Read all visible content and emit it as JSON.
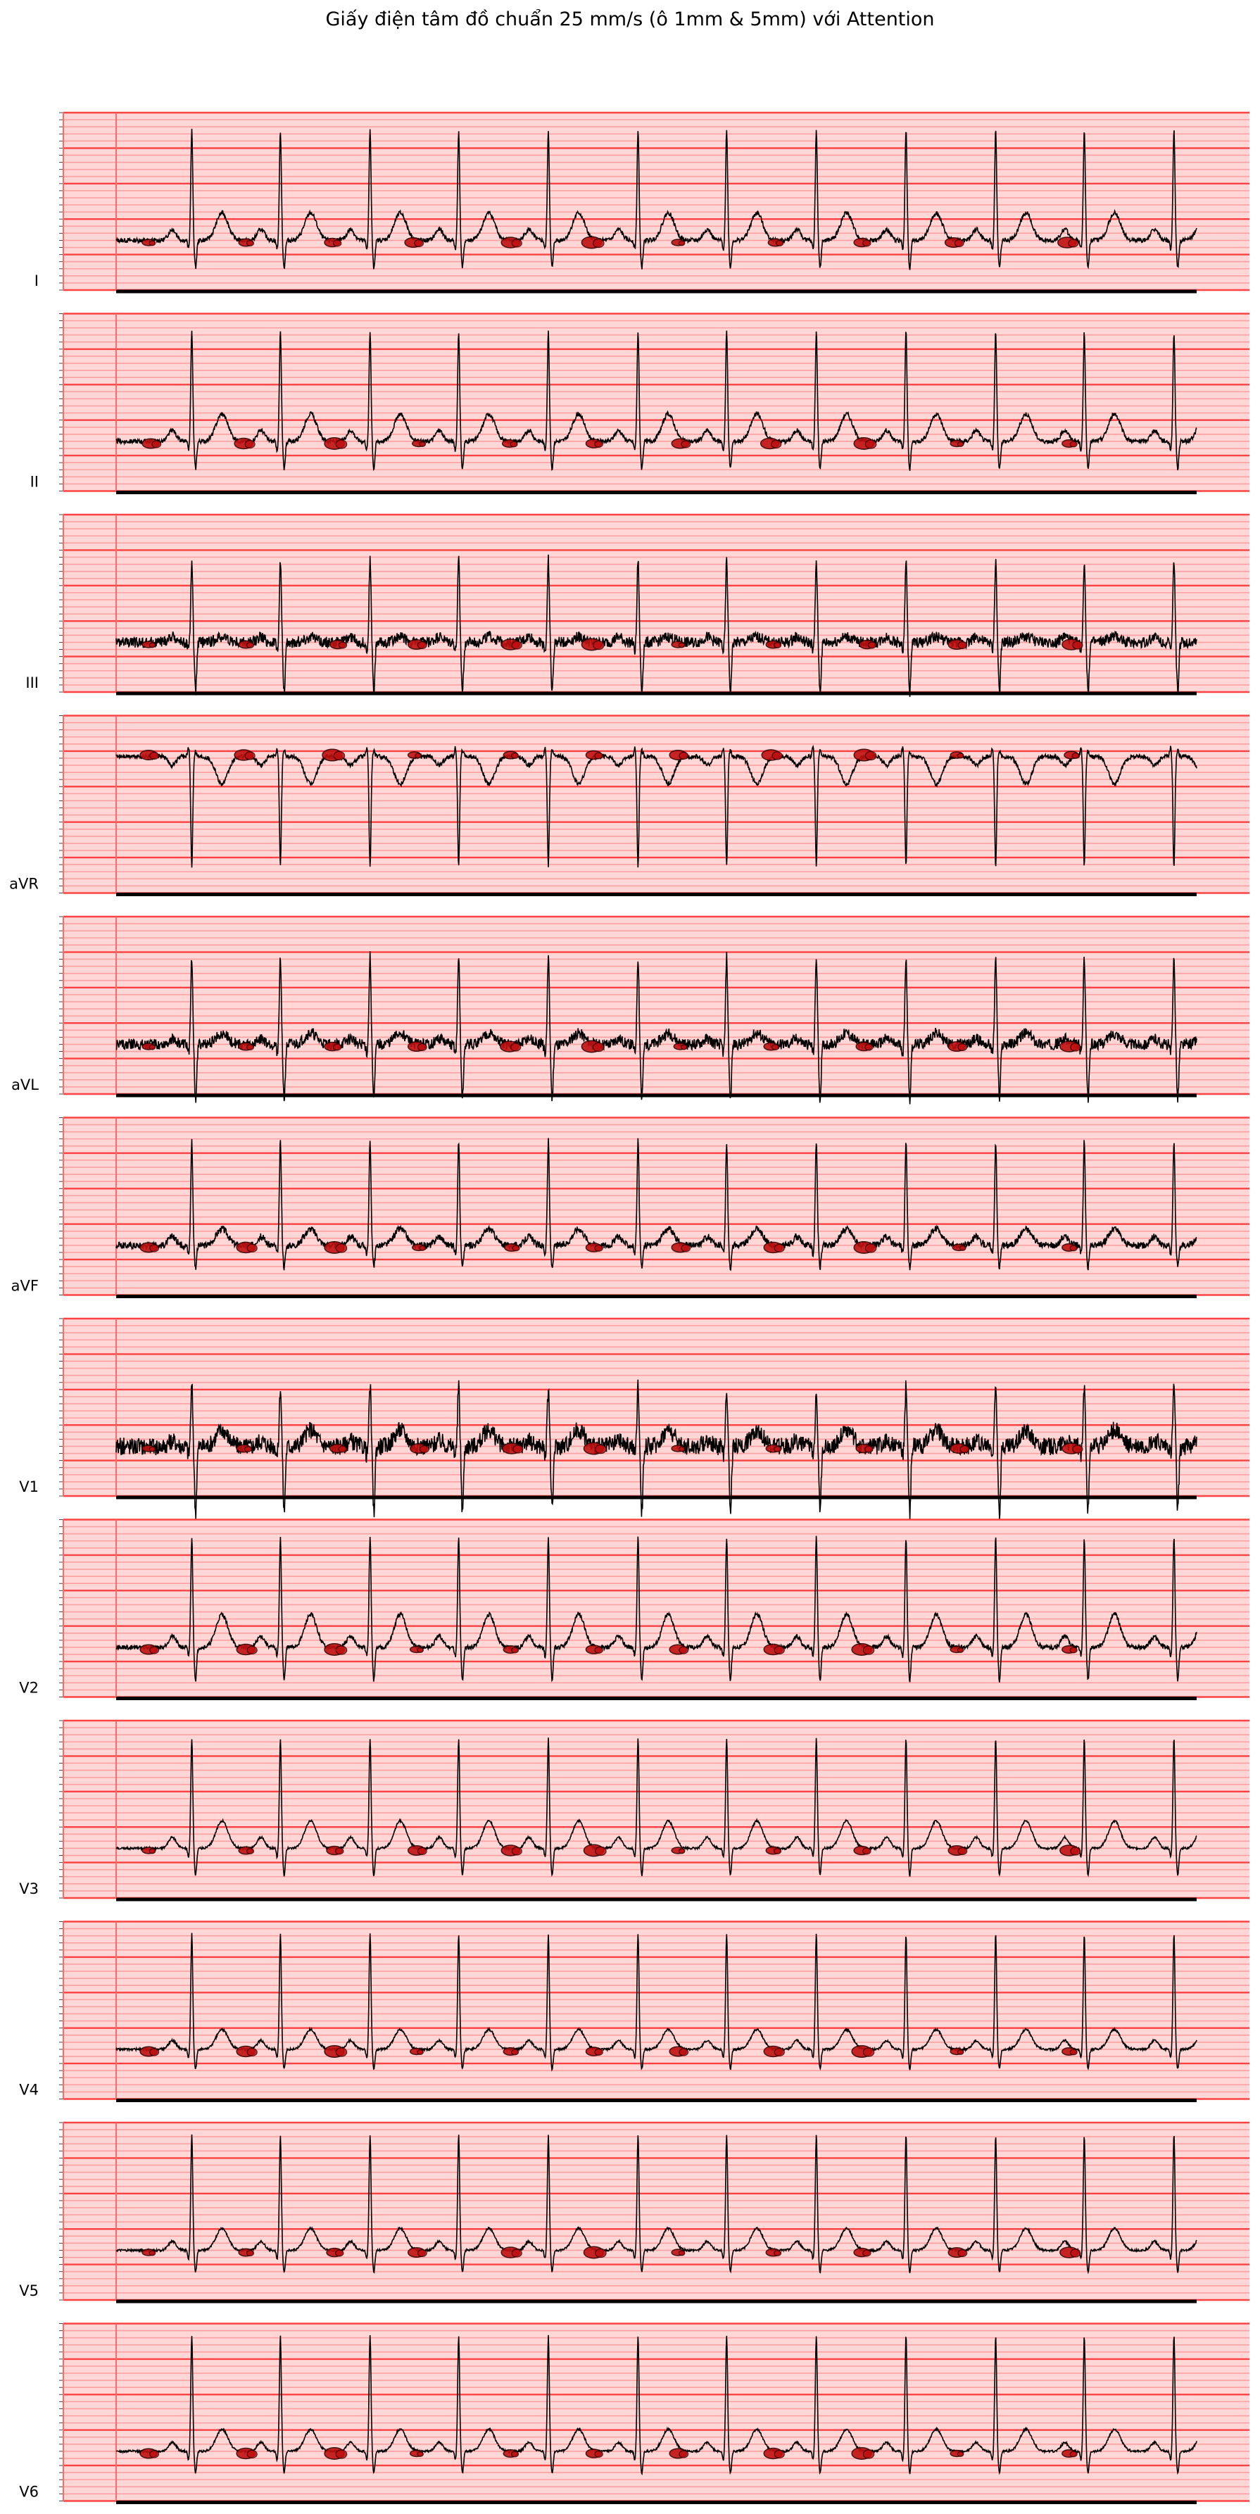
{
  "chart_data": {
    "type": "line",
    "title": "Giấy điện tâm đồ chuẩn 25 mm/s (ô 1mm & 5mm) với Attention",
    "xlabel": "",
    "ylabel": "",
    "grid": true,
    "colors": {
      "paper": "#ffd7d7",
      "grid_minor": "#ff9a9a",
      "grid_major": "#ff3030",
      "trace": "#000000",
      "attention": "#c01010",
      "attention_edge": "#300000",
      "baseline_bar": "#000000"
    },
    "beat_times": [
      0.7,
      1.52,
      2.35,
      3.17,
      4.0,
      4.83,
      5.65,
      6.48,
      7.31,
      8.14,
      8.96,
      9.79
    ],
    "leads": [
      {
        "name": "I",
        "r": 1.0,
        "s": 0.25,
        "t": 0.25,
        "p": 0.1,
        "noise": 0.02,
        "attention_times": [
          0.3,
          1.2,
          2.0,
          2.75,
          3.65,
          4.4,
          5.2,
          6.1,
          6.9,
          7.75,
          8.8
        ]
      },
      {
        "name": "II",
        "r": 1.0,
        "s": 0.25,
        "t": 0.25,
        "p": 0.1,
        "noise": 0.02,
        "attention_times": [
          0.32,
          1.18,
          2.02,
          2.8,
          3.64,
          4.42,
          5.22,
          6.05,
          6.92,
          7.78,
          8.82
        ]
      },
      {
        "name": "III",
        "r": 0.75,
        "s": 0.45,
        "t": 0.05,
        "p": 0.05,
        "noise": 0.05,
        "attention_times": [
          0.3,
          1.2,
          2.05,
          2.78,
          3.65,
          4.4,
          5.2,
          6.08,
          6.95,
          7.78,
          8.84
        ]
      },
      {
        "name": "aVR",
        "r": -1.0,
        "s": 0.05,
        "t": -0.25,
        "p": -0.08,
        "noise": 0.02,
        "attention_times": [
          0.3,
          1.18,
          2.0,
          2.76,
          3.65,
          4.42,
          5.2,
          6.06,
          6.92,
          7.78,
          8.84
        ]
      },
      {
        "name": "aVL",
        "r": 0.8,
        "s": 0.5,
        "t": 0.1,
        "p": 0.05,
        "noise": 0.05,
        "attention_times": [
          0.3,
          1.2,
          2.0,
          2.78,
          3.64,
          4.4,
          5.22,
          6.06,
          6.92,
          7.78,
          8.82
        ]
      },
      {
        "name": "aVF",
        "r": 0.95,
        "s": 0.2,
        "t": 0.15,
        "p": 0.08,
        "noise": 0.03,
        "attention_times": [
          0.3,
          1.2,
          2.02,
          2.8,
          3.66,
          4.42,
          5.22,
          6.08,
          6.92,
          7.8,
          8.82
        ]
      },
      {
        "name": "V1",
        "r": 0.55,
        "s": 0.6,
        "t": 0.15,
        "p": 0.05,
        "noise": 0.08,
        "attention_times": [
          0.3,
          1.18,
          2.05,
          2.8,
          3.66,
          4.42,
          5.2,
          6.08,
          6.92,
          7.8,
          8.84
        ]
      },
      {
        "name": "V2",
        "r": 1.0,
        "s": 0.3,
        "t": 0.3,
        "p": 0.1,
        "noise": 0.02,
        "attention_times": [
          0.3,
          1.2,
          2.02,
          2.78,
          3.65,
          4.42,
          5.2,
          6.08,
          6.9,
          7.78,
          8.82
        ]
      },
      {
        "name": "V3",
        "r": 1.0,
        "s": 0.25,
        "t": 0.25,
        "p": 0.1,
        "noise": 0.01,
        "attention_times": [
          0.3,
          1.2,
          2.02,
          2.78,
          3.65,
          4.42,
          5.2,
          6.08,
          6.9,
          7.78,
          8.82
        ]
      },
      {
        "name": "V4",
        "r": 1.05,
        "s": 0.18,
        "t": 0.18,
        "p": 0.08,
        "noise": 0.01,
        "attention_times": [
          0.3,
          1.2,
          2.02,
          2.78,
          3.65,
          4.42,
          5.2,
          6.08,
          6.9,
          7.78,
          8.82
        ]
      },
      {
        "name": "V5",
        "r": 1.05,
        "s": 0.2,
        "t": 0.2,
        "p": 0.08,
        "noise": 0.01,
        "attention_times": [
          0.3,
          1.2,
          2.02,
          2.78,
          3.65,
          4.42,
          5.2,
          6.08,
          6.9,
          7.78,
          8.82
        ]
      },
      {
        "name": "V6",
        "r": 1.05,
        "s": 0.2,
        "t": 0.2,
        "p": 0.08,
        "noise": 0.01,
        "attention_times": [
          0.3,
          1.2,
          2.02,
          2.78,
          3.65,
          4.42,
          5.2,
          6.08,
          6.9,
          7.78,
          8.82
        ]
      }
    ]
  }
}
